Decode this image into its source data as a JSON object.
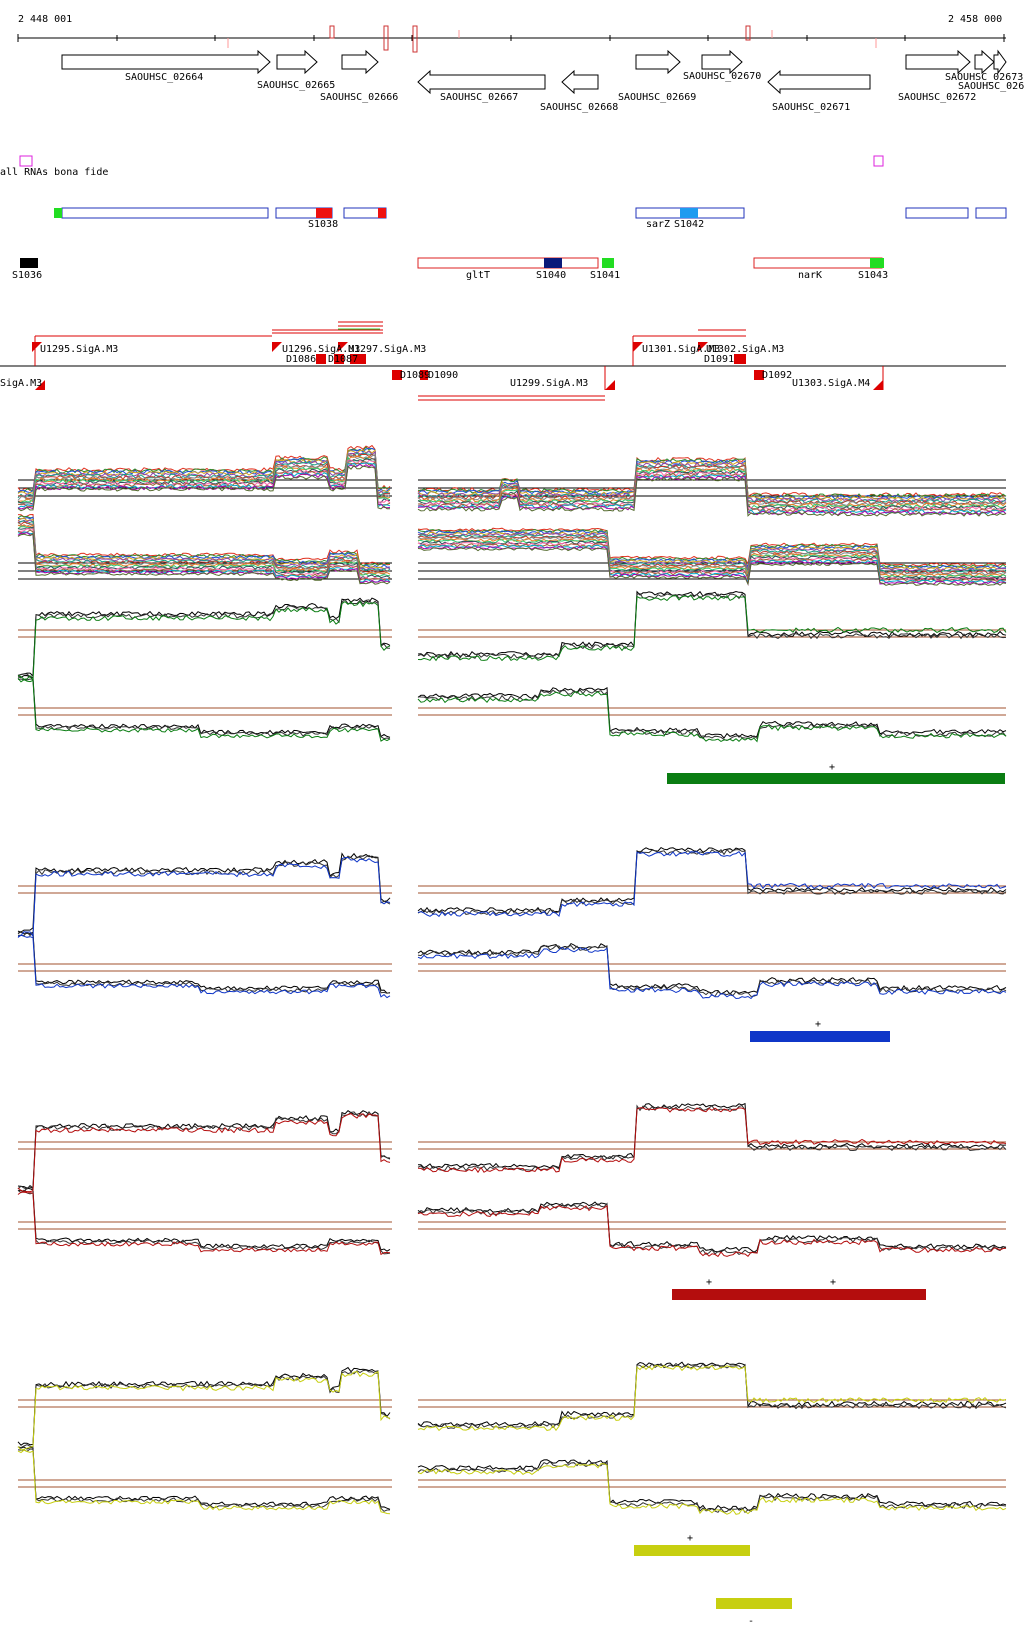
{
  "coordinates": {
    "start": "2 448 001",
    "end": "2 458 000"
  },
  "genes": [
    {
      "label": "SAOUHSC_02664",
      "strand": "+"
    },
    {
      "label": "SAOUHSC_02665",
      "strand": "+"
    },
    {
      "label": "SAOUHSC_02666",
      "strand": "+"
    },
    {
      "label": "SAOUHSC_02667",
      "strand": "-"
    },
    {
      "label": "SAOUHSC_02668",
      "strand": "-"
    },
    {
      "label": "SAOUHSC_02669",
      "strand": "+"
    },
    {
      "label": "SAOUHSC_02670",
      "strand": "+"
    },
    {
      "label": "SAOUHSC_02671",
      "strand": "-"
    },
    {
      "label": "SAOUHSC_02672",
      "strand": "+"
    },
    {
      "label": "SAOUHSC_02673",
      "strand": "+"
    },
    {
      "label": "SAOUHSC_026",
      "strand": "+"
    }
  ],
  "small_rna_track": {
    "label": "all RNAs bona fide"
  },
  "features_plus": [
    {
      "label": "S1038"
    },
    {
      "label": "sarZ"
    },
    {
      "label": "S1042"
    }
  ],
  "features_minus": [
    {
      "label": "S1036"
    },
    {
      "label": "gltT"
    },
    {
      "label": "S1040"
    },
    {
      "label": "S1041"
    },
    {
      "label": "narK"
    },
    {
      "label": "S1043"
    }
  ],
  "segments_plus": [
    {
      "label": "U1295.SigA.M3"
    },
    {
      "label": "U1296.SigA.M3"
    },
    {
      "label": "U1297.SigA.M3"
    },
    {
      "label": "U1301.SigA.M3"
    },
    {
      "label": "U1302.SigA.M3"
    }
  ],
  "segments_minus": [
    {
      "label": "SigA.M3"
    },
    {
      "label": "D1086"
    },
    {
      "label": "D1087"
    },
    {
      "label": "D1089"
    },
    {
      "label": "D1090"
    },
    {
      "label": "U1299.SigA.M3"
    },
    {
      "label": "D1091"
    },
    {
      "label": "D1092"
    },
    {
      "label": "U1303.SigA.M4"
    }
  ],
  "condition_bars": [
    {
      "color": "#0a7d12",
      "marks": [
        "+"
      ]
    },
    {
      "color": "#0f36c8",
      "marks": [
        "+"
      ]
    },
    {
      "color": "#b40d0d",
      "marks": [
        "+",
        "+"
      ]
    },
    {
      "color": "#c7cf10",
      "marks": [
        "+",
        "-"
      ]
    }
  ],
  "colors": {
    "gene_outline": "#000000",
    "feature_plus": "#2233bb",
    "feature_minus": "#dd2222",
    "segment": "#dd0000",
    "srna": "#dd22dd",
    "green": "#0a7d12",
    "blue": "#0f36c8",
    "red": "#b40d0d",
    "yellow": "#c7cf10"
  }
}
